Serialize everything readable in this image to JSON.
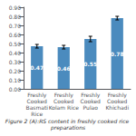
{
  "chart_data": {
    "type": "bar",
    "caption": "Figure 2 (A):RS content in freshly cooked rice preparations",
    "categories": [
      "Freshly\nCooked\nBasmati\nRice",
      "Freshly\nCooked\nKolam Rice",
      "Freshly\nCooked\nPulao",
      "Freshly\nCooked\nKhichadi"
    ],
    "values": [
      0.47,
      0.46,
      0.55,
      0.78
    ],
    "errors": [
      0.02,
      0.02,
      0.03,
      0.02
    ],
    "color": "#4B8BBE",
    "ylim": [
      0.0,
      0.9
    ],
    "yticks": [
      {
        "value": 0.0,
        "label": "0.00"
      },
      {
        "value": 0.1,
        "label": "0.10"
      },
      {
        "value": 0.2,
        "label": "0.20"
      },
      {
        "value": 0.3,
        "label": "0.30"
      },
      {
        "value": 0.4,
        "label": "0.40"
      },
      {
        "value": 0.5,
        "label": "0.50"
      },
      {
        "value": 0.6,
        "label": "0.60"
      },
      {
        "value": 0.7,
        "label": "0.70"
      },
      {
        "value": 0.8,
        "label": "0.80"
      },
      {
        "value": 0.9,
        "label": "0.90"
      }
    ],
    "data_labels": true,
    "grid": false
  }
}
